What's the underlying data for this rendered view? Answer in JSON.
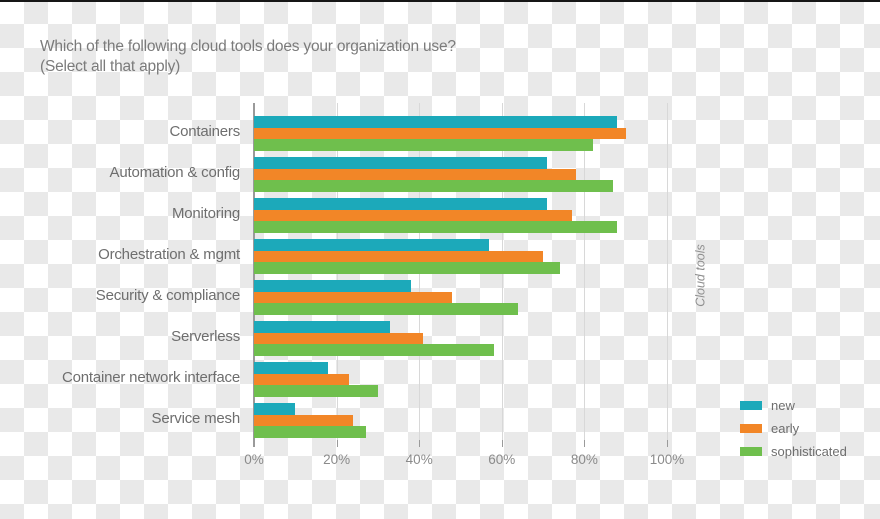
{
  "title": {
    "line1": "Which of the following cloud tools does your organization use?",
    "line2": "(Select all that apply)"
  },
  "chart_data": {
    "type": "bar",
    "orientation": "horizontal",
    "title": "Which of the following cloud tools does your organization use? (Select all that apply)",
    "categories": [
      "Containers",
      "Automation & config",
      "Monitoring",
      "Orchestration & mgmt",
      "Security & compliance",
      "Serverless",
      "Container network interface",
      "Service mesh"
    ],
    "series": [
      {
        "name": "new",
        "color": "#1ca9ba",
        "values": [
          88,
          71,
          71,
          57,
          38,
          33,
          18,
          10
        ]
      },
      {
        "name": "early",
        "color": "#f28627",
        "values": [
          90,
          78,
          77,
          70,
          48,
          41,
          23,
          24
        ]
      },
      {
        "name": "sophisticated",
        "color": "#6fbf4d",
        "values": [
          82,
          87,
          88,
          74,
          64,
          58,
          30,
          27
        ]
      }
    ],
    "units": "percent of respondents",
    "xlabel": "",
    "ylabel": "Cloud tools",
    "xlim": [
      0,
      100
    ],
    "x_ticks": [
      {
        "value": 0,
        "label": "0%"
      },
      {
        "value": 20,
        "label": "20%"
      },
      {
        "value": 40,
        "label": "40%"
      },
      {
        "value": 60,
        "label": "60%"
      },
      {
        "value": 80,
        "label": "80%"
      },
      {
        "value": 100,
        "label": "100%"
      }
    ],
    "grid": true,
    "legend_position": "bottom-right"
  },
  "colors": {
    "checker_gray": "#e9e9e9",
    "axis": "#9a9a9a",
    "gridline": "#d8d8d8",
    "title_text": "#7b7b7b",
    "label_text": "#6e6e6e",
    "tick_text": "#8b8b8b"
  }
}
